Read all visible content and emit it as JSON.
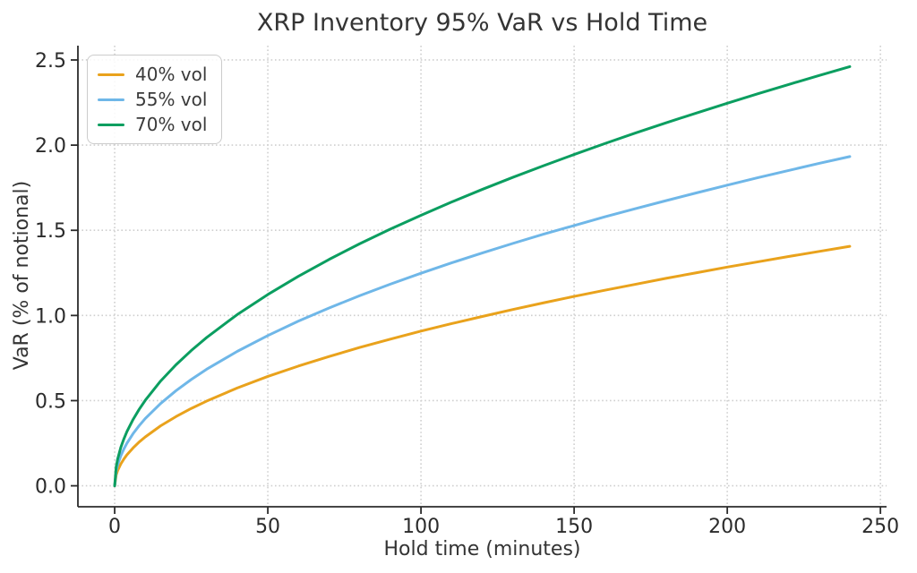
{
  "chart_data": {
    "type": "line",
    "title": "XRP Inventory 95% VaR vs Hold Time",
    "xlabel": "Hold time (minutes)",
    "ylabel": "VaR (% of notional)",
    "x": [
      0,
      0.5,
      1,
      2,
      3,
      4,
      6,
      8,
      10,
      15,
      20,
      25,
      30,
      40,
      50,
      60,
      70,
      80,
      90,
      100,
      110,
      120,
      130,
      140,
      150,
      160,
      170,
      180,
      190,
      200,
      210,
      220,
      230,
      240
    ],
    "series": [
      {
        "name": "40% vol",
        "color": "#e9a21c",
        "values": [
          0,
          0.064,
          0.091,
          0.128,
          0.157,
          0.182,
          0.222,
          0.257,
          0.287,
          0.352,
          0.406,
          0.454,
          0.497,
          0.574,
          0.642,
          0.703,
          0.759,
          0.812,
          0.861,
          0.908,
          0.952,
          0.994,
          1.035,
          1.074,
          1.112,
          1.148,
          1.183,
          1.218,
          1.251,
          1.284,
          1.315,
          1.346,
          1.376,
          1.406
        ]
      },
      {
        "name": "55% vol",
        "color": "#6fb7e8",
        "values": [
          0,
          0.088,
          0.125,
          0.176,
          0.216,
          0.25,
          0.306,
          0.353,
          0.395,
          0.483,
          0.558,
          0.624,
          0.684,
          0.789,
          0.882,
          0.967,
          1.044,
          1.116,
          1.184,
          1.248,
          1.309,
          1.367,
          1.423,
          1.477,
          1.528,
          1.579,
          1.627,
          1.674,
          1.72,
          1.765,
          1.809,
          1.851,
          1.893,
          1.933
        ]
      },
      {
        "name": "70% vol",
        "color": "#0b9e60",
        "values": [
          0,
          0.112,
          0.159,
          0.225,
          0.275,
          0.318,
          0.389,
          0.449,
          0.502,
          0.615,
          0.71,
          0.794,
          0.87,
          1.005,
          1.123,
          1.23,
          1.329,
          1.421,
          1.507,
          1.588,
          1.666,
          1.74,
          1.811,
          1.879,
          1.945,
          2.009,
          2.071,
          2.131,
          2.189,
          2.246,
          2.302,
          2.356,
          2.409,
          2.461
        ]
      }
    ],
    "xlim": [
      -12,
      252
    ],
    "ylim": [
      -0.123,
      2.584
    ],
    "xticks": [
      "0",
      "50",
      "100",
      "150",
      "200",
      "250"
    ],
    "yticks": [
      "0.0",
      "0.5",
      "1.0",
      "1.5",
      "2.0",
      "2.5"
    ],
    "grid": true,
    "grid_style": "dotted",
    "legend_position": "upper left",
    "colors": {
      "grid": "#cfcfcf",
      "spine": "#2b2b2b",
      "tick_text": "#2b2b2b",
      "background": "#ffffff"
    }
  }
}
